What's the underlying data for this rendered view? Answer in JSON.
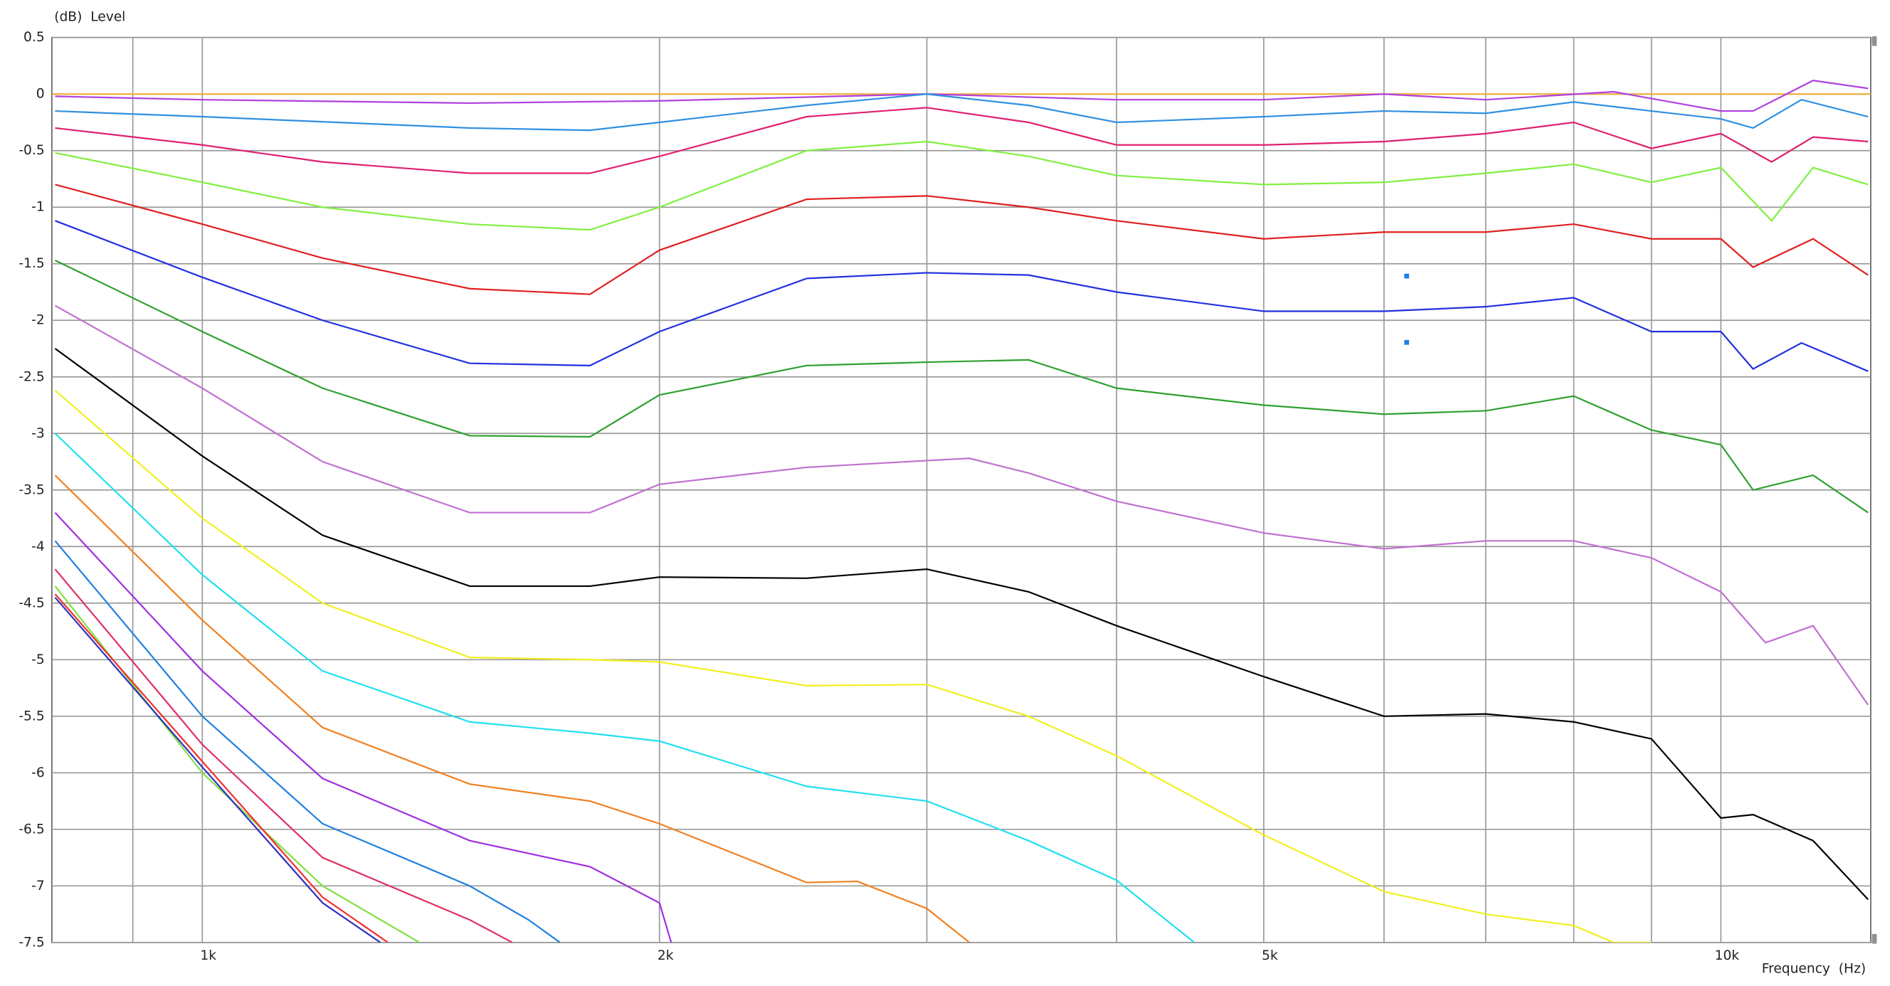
{
  "chart_data": {
    "type": "line",
    "x_label": "Frequency  (Hz)",
    "y_label": "(dB)  Level",
    "xscale": "log",
    "xlim": [
      796,
      12550
    ],
    "ylim": [
      -7.5,
      0.5
    ],
    "xticks": [
      {
        "value": 1000,
        "label": "1k"
      },
      {
        "value": 2000,
        "label": "2k"
      },
      {
        "value": 5000,
        "label": "5k"
      },
      {
        "value": 10000,
        "label": "10k"
      }
    ],
    "xgrid_minor": [
      900,
      3000,
      4000,
      6000,
      7000,
      8000,
      9000
    ],
    "yticks": [
      0.5,
      0,
      -0.5,
      -1,
      -1.5,
      -2,
      -2.5,
      -3,
      -3.5,
      -4,
      -4.5,
      -5,
      -5.5,
      -6,
      -6.5,
      -7,
      -7.5
    ],
    "grid": true,
    "series": [
      {
        "color": "#f0b040",
        "x": [
          796,
          12550
        ],
        "values": [
          0,
          0
        ]
      },
      {
        "color": "#b040e0",
        "x": [
          800,
          1000,
          1500,
          2000,
          3000,
          4000,
          5000,
          6000,
          7000,
          8500,
          10000,
          10500,
          11500,
          12500
        ],
        "values": [
          -0.02,
          -0.05,
          -0.08,
          -0.06,
          0,
          -0.05,
          -0.05,
          0,
          -0.05,
          0.02,
          -0.15,
          -0.15,
          0.12,
          0.05
        ]
      },
      {
        "color": "#3090e0",
        "x": [
          800,
          1000,
          1500,
          1800,
          2000,
          2500,
          3000,
          3500,
          4000,
          5000,
          6000,
          7000,
          8000,
          9000,
          10000,
          10500,
          11300,
          12500
        ],
        "values": [
          -0.15,
          -0.2,
          -0.3,
          -0.32,
          -0.25,
          -0.1,
          0,
          -0.1,
          -0.25,
          -0.2,
          -0.15,
          -0.17,
          -0.07,
          -0.15,
          -0.22,
          -0.3,
          -0.05,
          -0.2
        ]
      },
      {
        "color": "#e0206f",
        "x": [
          800,
          1000,
          1200,
          1500,
          1800,
          2000,
          2500,
          3000,
          3500,
          4000,
          5000,
          6000,
          7000,
          8000,
          9000,
          10000,
          10800,
          11500,
          12500
        ],
        "values": [
          -0.3,
          -0.45,
          -0.6,
          -0.7,
          -0.7,
          -0.55,
          -0.2,
          -0.12,
          -0.25,
          -0.45,
          -0.45,
          -0.42,
          -0.35,
          -0.25,
          -0.48,
          -0.35,
          -0.6,
          -0.38,
          -0.42
        ]
      },
      {
        "color": "#80f040",
        "x": [
          800,
          1000,
          1200,
          1500,
          1800,
          2000,
          2500,
          3000,
          3500,
          4000,
          5000,
          6000,
          7000,
          8000,
          9000,
          10000,
          10800,
          11500,
          12500
        ],
        "values": [
          -0.52,
          -0.78,
          -1.0,
          -1.15,
          -1.2,
          -1.0,
          -0.5,
          -0.42,
          -0.55,
          -0.72,
          -0.8,
          -0.78,
          -0.7,
          -0.62,
          -0.78,
          -0.65,
          -1.12,
          -0.65,
          -0.8
        ]
      },
      {
        "color": "#e02020",
        "x": [
          800,
          1000,
          1200,
          1500,
          1800,
          2000,
          2500,
          3000,
          3500,
          4000,
          5000,
          6000,
          7000,
          8000,
          9000,
          10000,
          10500,
          11500,
          12500
        ],
        "values": [
          -0.8,
          -1.15,
          -1.45,
          -1.72,
          -1.77,
          -1.38,
          -0.93,
          -0.9,
          -1.0,
          -1.12,
          -1.28,
          -1.22,
          -1.22,
          -1.15,
          -1.28,
          -1.28,
          -1.53,
          -1.28,
          -1.6
        ]
      },
      {
        "color": "#2030e0",
        "x": [
          800,
          1000,
          1200,
          1500,
          1800,
          2000,
          2500,
          3000,
          3500,
          4000,
          5000,
          6000,
          7000,
          8000,
          9000,
          10000,
          10500,
          11300,
          12500
        ],
        "values": [
          -1.12,
          -1.62,
          -2.0,
          -2.38,
          -2.4,
          -2.1,
          -1.63,
          -1.58,
          -1.6,
          -1.75,
          -1.92,
          -1.92,
          -1.88,
          -1.8,
          -2.1,
          -2.1,
          -2.43,
          -2.2,
          -2.45
        ]
      },
      {
        "color": "#30a030",
        "x": [
          800,
          1000,
          1200,
          1500,
          1800,
          2000,
          2500,
          3000,
          3500,
          4000,
          5000,
          6000,
          7000,
          8000,
          9000,
          10000,
          10500,
          11500,
          12500
        ],
        "values": [
          -1.47,
          -2.1,
          -2.6,
          -3.02,
          -3.03,
          -2.66,
          -2.4,
          -2.37,
          -2.35,
          -2.6,
          -2.75,
          -2.83,
          -2.8,
          -2.67,
          -2.97,
          -3.1,
          -3.5,
          -3.37,
          -3.7
        ]
      },
      {
        "color": "#c070d0",
        "x": [
          800,
          1000,
          1200,
          1500,
          1800,
          2000,
          2500,
          3000,
          3200,
          3500,
          4000,
          5000,
          6000,
          7000,
          8000,
          9000,
          10000,
          10700,
          11500,
          12500
        ],
        "values": [
          -1.87,
          -2.6,
          -3.25,
          -3.7,
          -3.7,
          -3.45,
          -3.3,
          -3.24,
          -3.22,
          -3.35,
          -3.6,
          -3.88,
          -4.02,
          -3.95,
          -3.95,
          -4.1,
          -4.4,
          -4.85,
          -4.7,
          -5.4
        ]
      },
      {
        "color": "#000000",
        "x": [
          800,
          1000,
          1200,
          1500,
          1800,
          2000,
          2500,
          3000,
          3500,
          4000,
          5000,
          6000,
          7000,
          8000,
          9000,
          10000,
          10500,
          11500,
          12500
        ],
        "values": [
          -2.25,
          -3.2,
          -3.9,
          -4.35,
          -4.35,
          -4.27,
          -4.28,
          -4.2,
          -4.4,
          -4.7,
          -5.15,
          -5.5,
          -5.48,
          -5.55,
          -5.7,
          -6.4,
          -6.37,
          -6.6,
          -7.12
        ]
      },
      {
        "color": "#f0f020",
        "x": [
          800,
          1000,
          1200,
          1500,
          1800,
          2000,
          2500,
          3000,
          3500,
          4000,
          5000,
          6000,
          7000,
          8000,
          8500,
          9000
        ],
        "values": [
          -2.62,
          -3.75,
          -4.5,
          -4.98,
          -5.0,
          -5.02,
          -5.23,
          -5.22,
          -5.5,
          -5.85,
          -6.55,
          -7.05,
          -7.25,
          -7.35,
          -7.5,
          -7.5
        ]
      },
      {
        "color": "#20e0f0",
        "x": [
          800,
          1000,
          1200,
          1500,
          1800,
          2000,
          2500,
          3000,
          3500,
          4000,
          4500
        ],
        "values": [
          -3.0,
          -4.25,
          -5.1,
          -5.55,
          -5.65,
          -5.72,
          -6.12,
          -6.25,
          -6.6,
          -6.95,
          -7.5
        ]
      },
      {
        "color": "#f08020",
        "x": [
          800,
          1000,
          1200,
          1500,
          1800,
          2000,
          2500,
          2700,
          3000,
          3200
        ],
        "values": [
          -3.37,
          -4.65,
          -5.6,
          -6.1,
          -6.25,
          -6.45,
          -6.97,
          -6.96,
          -7.2,
          -7.5
        ]
      },
      {
        "color": "#a030e0",
        "x": [
          800,
          1000,
          1200,
          1500,
          1800,
          2000,
          2036
        ],
        "values": [
          -3.7,
          -5.1,
          -6.05,
          -6.6,
          -6.83,
          -7.15,
          -7.5
        ]
      },
      {
        "color": "#2080e0",
        "x": [
          800,
          1000,
          1200,
          1500,
          1640,
          1720
        ],
        "values": [
          -3.95,
          -5.5,
          -6.45,
          -7.0,
          -7.3,
          -7.5
        ]
      },
      {
        "color": "#e03060",
        "x": [
          800,
          1000,
          1200,
          1500,
          1600
        ],
        "values": [
          -4.2,
          -5.75,
          -6.75,
          -7.3,
          -7.5
        ]
      },
      {
        "color": "#80e040",
        "x": [
          800,
          1000,
          1200,
          1390
        ],
        "values": [
          -4.35,
          -6.0,
          -7.0,
          -7.5
        ]
      },
      {
        "color": "#f03030",
        "x": [
          800,
          1000,
          1200,
          1325
        ],
        "values": [
          -4.42,
          -5.9,
          -7.1,
          -7.5
        ]
      },
      {
        "color": "#3030c0",
        "x": [
          800,
          1000,
          1200,
          1310
        ],
        "values": [
          -4.45,
          -5.95,
          -7.15,
          -7.5
        ]
      }
    ]
  }
}
